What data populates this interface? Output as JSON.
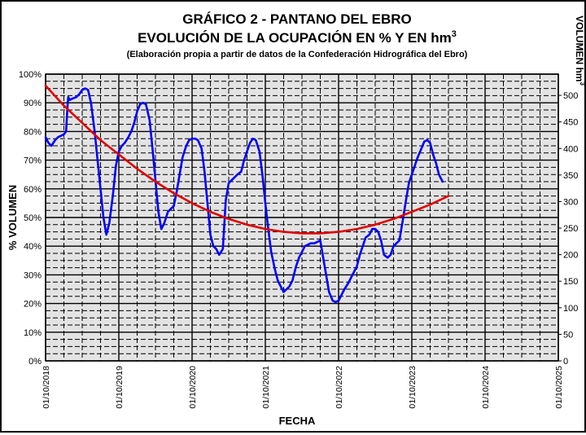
{
  "chart_data": {
    "type": "line",
    "title": "GRÁFICO 2 - PANTANO DEL EBRO",
    "subtitle_line1": "EVOLUCIÓN DE LA OCUPACIÓN EN % Y EN hm",
    "subtitle_line1_sup": "3",
    "source_note": "(Elaboración propia a partir de datos de la Confederación Hidrográfica del Ebro)",
    "xlabel": "FECHA",
    "ylabel": "% VOLUMEN",
    "y2label": "VOLUMEN hm",
    "y2label_sup": "3",
    "x_ticks": [
      "01/10/2018",
      "01/10/2019",
      "01/10/2020",
      "01/10/2021",
      "01/10/2022",
      "01/10/2023",
      "01/10/2024",
      "01/10/2025"
    ],
    "x_range": [
      2018.75,
      2025.75
    ],
    "y_ticks": [
      "0%",
      "10%",
      "20%",
      "30%",
      "40%",
      "50%",
      "60%",
      "70%",
      "80%",
      "90%",
      "100%"
    ],
    "ylim": [
      0,
      100
    ],
    "y2_ticks": [
      "0",
      "50",
      "100",
      "150",
      "200",
      "250",
      "300",
      "350",
      "400",
      "450",
      "500"
    ],
    "y2lim": [
      0,
      540
    ],
    "grid": true,
    "series": [
      {
        "color": "#0000ff",
        "points": [
          [
            2018.75,
            78
          ],
          [
            2018.79,
            76
          ],
          [
            2018.83,
            75
          ],
          [
            2018.88,
            77
          ],
          [
            2018.92,
            78
          ],
          [
            2018.96,
            78.5
          ],
          [
            2019.0,
            79
          ],
          [
            2019.03,
            80
          ],
          [
            2019.05,
            89
          ],
          [
            2019.06,
            92
          ],
          [
            2019.08,
            91
          ],
          [
            2019.12,
            91.5
          ],
          [
            2019.17,
            92
          ],
          [
            2019.21,
            93
          ],
          [
            2019.25,
            94.5
          ],
          [
            2019.29,
            95
          ],
          [
            2019.33,
            94.5
          ],
          [
            2019.37,
            90
          ],
          [
            2019.42,
            80
          ],
          [
            2019.46,
            70
          ],
          [
            2019.5,
            60
          ],
          [
            2019.54,
            50
          ],
          [
            2019.58,
            44
          ],
          [
            2019.62,
            48
          ],
          [
            2019.67,
            58
          ],
          [
            2019.71,
            68
          ],
          [
            2019.75,
            73
          ],
          [
            2019.79,
            75
          ],
          [
            2019.83,
            76
          ],
          [
            2019.88,
            78
          ],
          [
            2019.92,
            80
          ],
          [
            2019.96,
            83
          ],
          [
            2020.0,
            87
          ],
          [
            2020.04,
            89.5
          ],
          [
            2020.08,
            90
          ],
          [
            2020.12,
            89.5
          ],
          [
            2020.17,
            84
          ],
          [
            2020.21,
            74
          ],
          [
            2020.25,
            63
          ],
          [
            2020.29,
            52
          ],
          [
            2020.33,
            46
          ],
          [
            2020.37,
            48
          ],
          [
            2020.42,
            52
          ],
          [
            2020.46,
            53
          ],
          [
            2020.5,
            54
          ],
          [
            2020.54,
            59
          ],
          [
            2020.58,
            65
          ],
          [
            2020.62,
            71
          ],
          [
            2020.67,
            75
          ],
          [
            2020.71,
            77
          ],
          [
            2020.75,
            77.5
          ],
          [
            2020.79,
            77.5
          ],
          [
            2020.83,
            77
          ],
          [
            2020.88,
            74
          ],
          [
            2020.92,
            66
          ],
          [
            2020.96,
            55
          ],
          [
            2021.0,
            44
          ],
          [
            2021.04,
            40
          ],
          [
            2021.08,
            39
          ],
          [
            2021.12,
            37
          ],
          [
            2021.17,
            39
          ],
          [
            2021.21,
            56
          ],
          [
            2021.25,
            62
          ],
          [
            2021.29,
            63
          ],
          [
            2021.33,
            64
          ],
          [
            2021.37,
            65
          ],
          [
            2021.42,
            66
          ],
          [
            2021.46,
            70
          ],
          [
            2021.5,
            73
          ],
          [
            2021.54,
            76
          ],
          [
            2021.58,
            77.5
          ],
          [
            2021.62,
            77
          ],
          [
            2021.67,
            73
          ],
          [
            2021.71,
            65
          ],
          [
            2021.75,
            55
          ],
          [
            2021.79,
            46
          ],
          [
            2021.83,
            38
          ],
          [
            2021.88,
            32
          ],
          [
            2021.92,
            28
          ],
          [
            2021.96,
            26
          ],
          [
            2022.0,
            24
          ],
          [
            2022.04,
            25
          ],
          [
            2022.08,
            26
          ],
          [
            2022.12,
            28
          ],
          [
            2022.17,
            33
          ],
          [
            2022.21,
            36
          ],
          [
            2022.25,
            38
          ],
          [
            2022.29,
            40
          ],
          [
            2022.33,
            40.5
          ],
          [
            2022.37,
            41
          ],
          [
            2022.42,
            41
          ],
          [
            2022.46,
            41.5
          ],
          [
            2022.5,
            42
          ],
          [
            2022.54,
            36
          ],
          [
            2022.58,
            30
          ],
          [
            2022.62,
            24
          ],
          [
            2022.67,
            21
          ],
          [
            2022.71,
            20.5
          ],
          [
            2022.75,
            21
          ],
          [
            2022.79,
            23
          ],
          [
            2022.83,
            25
          ],
          [
            2022.88,
            27
          ],
          [
            2022.92,
            29
          ],
          [
            2022.96,
            31
          ],
          [
            2023.0,
            33
          ],
          [
            2023.04,
            37
          ],
          [
            2023.08,
            40
          ],
          [
            2023.12,
            43
          ],
          [
            2023.17,
            44
          ],
          [
            2023.21,
            46
          ],
          [
            2023.25,
            46
          ],
          [
            2023.29,
            45
          ],
          [
            2023.33,
            42
          ],
          [
            2023.37,
            37
          ],
          [
            2023.42,
            36
          ],
          [
            2023.46,
            37
          ],
          [
            2023.5,
            40
          ],
          [
            2023.54,
            41
          ],
          [
            2023.58,
            42
          ],
          [
            2023.62,
            48
          ],
          [
            2023.67,
            56
          ],
          [
            2023.71,
            62
          ],
          [
            2023.75,
            65
          ],
          [
            2023.79,
            68
          ],
          [
            2023.83,
            71
          ],
          [
            2023.88,
            74
          ],
          [
            2023.92,
            76.5
          ],
          [
            2023.96,
            77
          ],
          [
            2024.0,
            76
          ],
          [
            2024.04,
            72
          ],
          [
            2024.08,
            69
          ],
          [
            2024.12,
            65
          ],
          [
            2024.17,
            62.5
          ]
        ]
      },
      {
        "color": "#e00000",
        "points": [
          [
            2018.75,
            96
          ],
          [
            2019.0,
            89
          ],
          [
            2019.25,
            83
          ],
          [
            2019.5,
            77
          ],
          [
            2019.75,
            72
          ],
          [
            2020.0,
            67
          ],
          [
            2020.25,
            62.5
          ],
          [
            2020.5,
            58.5
          ],
          [
            2020.75,
            55
          ],
          [
            2021.0,
            52
          ],
          [
            2021.25,
            49.5
          ],
          [
            2021.5,
            47.5
          ],
          [
            2021.75,
            46
          ],
          [
            2022.0,
            45
          ],
          [
            2022.25,
            44.5
          ],
          [
            2022.5,
            44.5
          ],
          [
            2022.75,
            45
          ],
          [
            2023.0,
            46
          ],
          [
            2023.25,
            47.5
          ],
          [
            2023.5,
            49.5
          ],
          [
            2023.75,
            52
          ],
          [
            2024.0,
            54.5
          ],
          [
            2024.25,
            57.5
          ]
        ]
      }
    ]
  }
}
